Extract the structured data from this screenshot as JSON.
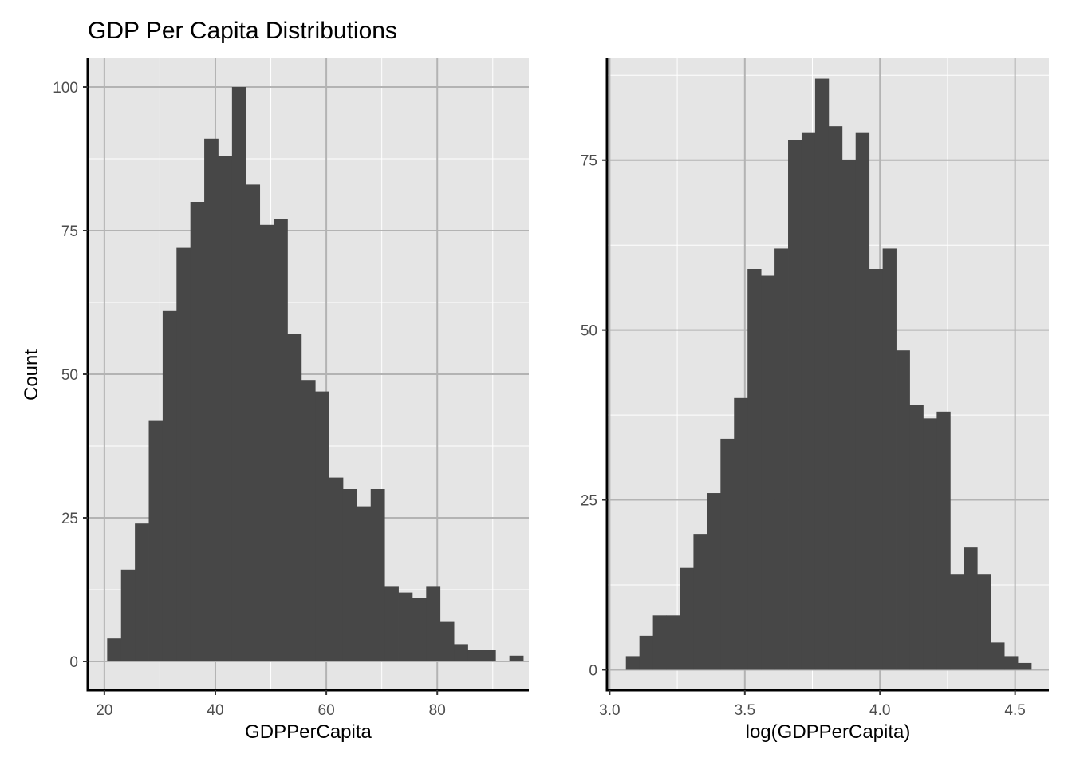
{
  "title": "GDP Per Capita Distributions",
  "ylabel": "Count",
  "colors": {
    "panel_bg": "#e5e5e5",
    "bar": "#474747",
    "major_grid": "#b3b3b3",
    "minor_grid": "#ffffff",
    "axis_line": "#000000"
  },
  "chart_data": [
    {
      "type": "bar",
      "title": "GDP Per Capita Distributions",
      "xlabel": "GDPPerCapita",
      "ylabel": "Count",
      "xlim": [
        17,
        96.5
      ],
      "ylim": [
        -5,
        105
      ],
      "xticks": [
        20,
        40,
        60,
        80
      ],
      "xtick_labels": [
        "20",
        "40",
        "60",
        "80"
      ],
      "yticks": [
        0,
        25,
        50,
        75,
        100
      ],
      "ytick_labels": [
        "0",
        "25",
        "50",
        "75",
        "100"
      ],
      "grid": true,
      "bin_width": 2.5,
      "bins_start": 20.5,
      "values": [
        4,
        16,
        24,
        42,
        61,
        72,
        80,
        91,
        88,
        100,
        83,
        76,
        77,
        57,
        49,
        47,
        32,
        30,
        27,
        30,
        13,
        12,
        11,
        13,
        7,
        3,
        2,
        2,
        0,
        1
      ]
    },
    {
      "type": "bar",
      "xlabel": "log(GDPPerCapita)",
      "ylabel": "",
      "xlim": [
        2.99,
        4.625
      ],
      "ylim": [
        -3,
        90
      ],
      "xticks": [
        3.0,
        3.5,
        4.0,
        4.5
      ],
      "xtick_labels": [
        "3.0",
        "3.5",
        "4.0",
        "4.5"
      ],
      "yticks": [
        0,
        25,
        50,
        75
      ],
      "ytick_labels": [
        "0",
        "25",
        "50",
        "75"
      ],
      "grid": true,
      "bin_width": 0.05,
      "bins_start": 3.06,
      "values": [
        2,
        5,
        8,
        8,
        15,
        20,
        26,
        34,
        40,
        59,
        58,
        62,
        78,
        79,
        87,
        80,
        75,
        79,
        59,
        62,
        47,
        39,
        37,
        38,
        14,
        18,
        14,
        4,
        2,
        1
      ]
    }
  ]
}
